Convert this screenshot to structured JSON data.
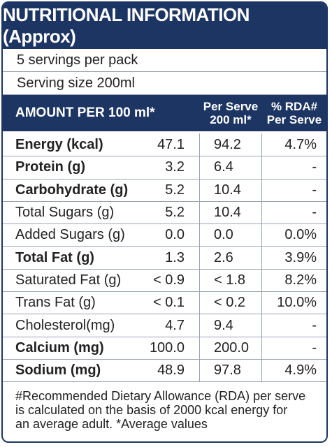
{
  "header": {
    "title": "NUTRITIONAL INFORMATION (Approx)",
    "servings": "5 servings per pack",
    "serving_size": "Serving size 200ml"
  },
  "table": {
    "columns": [
      [
        "AMOUNT PER 100 ml*"
      ],
      [
        "Per Serve",
        "200 ml*"
      ],
      [
        "% RDA#",
        "Per Serve"
      ]
    ],
    "rows": [
      {
        "name": "Energy (kcal)",
        "bold": true,
        "cells": [
          "47.1",
          "94.2",
          "4.7%"
        ]
      },
      {
        "name": "Protein (g)",
        "bold": true,
        "cells": [
          "3.2",
          "6.4",
          "-"
        ]
      },
      {
        "name": "Carbohydrate (g)",
        "bold": true,
        "cells": [
          "5.2",
          "10.4",
          "-"
        ]
      },
      {
        "name": "Total Sugars (g)",
        "bold": false,
        "cells": [
          "5.2",
          "10.4",
          "-"
        ]
      },
      {
        "name": "Added Sugars (g)",
        "bold": false,
        "cells": [
          "0.0",
          "0.0",
          "0.0%"
        ]
      },
      {
        "name": "Total Fat (g)",
        "bold": true,
        "cells": [
          "1.3",
          "2.6",
          "3.9%"
        ]
      },
      {
        "name": "Saturated Fat (g)",
        "bold": false,
        "cells": [
          "< 0.9",
          "< 1.8",
          "8.2%"
        ]
      },
      {
        "name": "Trans Fat (g)",
        "bold": false,
        "cells": [
          "< 0.1",
          "< 0.2",
          "10.0%"
        ]
      },
      {
        "name": "Cholesterol(mg)",
        "bold": false,
        "cells": [
          "4.7",
          "9.4",
          "-"
        ]
      },
      {
        "name": "Calcium (mg)",
        "bold": true,
        "cells": [
          "100.0",
          "200.0",
          "-"
        ]
      },
      {
        "name": "Sodium (mg)",
        "bold": true,
        "cells": [
          "48.9",
          "97.8",
          "4.9%"
        ]
      }
    ]
  },
  "footnote": [
    "#Recommended Dietary Allowance (RDA) per serve",
    "is calculated on the basis of 2000 kcal energy for",
    "an average adult.   *Average values"
  ]
}
